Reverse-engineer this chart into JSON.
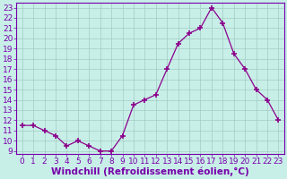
{
  "x": [
    0,
    1,
    2,
    3,
    4,
    5,
    6,
    7,
    8,
    9,
    10,
    11,
    12,
    13,
    14,
    15,
    16,
    17,
    18,
    19,
    20,
    21,
    22,
    23
  ],
  "y": [
    11.5,
    11.5,
    11.0,
    10.5,
    9.5,
    10.0,
    9.5,
    9.0,
    9.0,
    10.5,
    13.5,
    14.0,
    14.5,
    17.0,
    19.5,
    20.5,
    21.0,
    23.0,
    21.5,
    18.5,
    17.0,
    15.0,
    14.0,
    12.0
  ],
  "line_color": "#8b008b",
  "marker": "+",
  "marker_color": "#8b008b",
  "bg_color": "#c8eee8",
  "grid_color": "#a0ccc4",
  "xlabel": "Windchill (Refroidissement éolien,°C)",
  "xlim_min": -0.5,
  "xlim_max": 23.5,
  "ylim_min": 8.7,
  "ylim_max": 23.5,
  "yticks": [
    9,
    10,
    11,
    12,
    13,
    14,
    15,
    16,
    17,
    18,
    19,
    20,
    21,
    22,
    23
  ],
  "xticks": [
    0,
    1,
    2,
    3,
    4,
    5,
    6,
    7,
    8,
    9,
    10,
    11,
    12,
    13,
    14,
    15,
    16,
    17,
    18,
    19,
    20,
    21,
    22,
    23
  ],
  "tick_color": "#7700aa",
  "label_color": "#7700aa",
  "spine_color": "#7700aa",
  "font_size": 6.5,
  "xlabel_font_size": 7.5,
  "linewidth": 0.9,
  "markersize": 4
}
